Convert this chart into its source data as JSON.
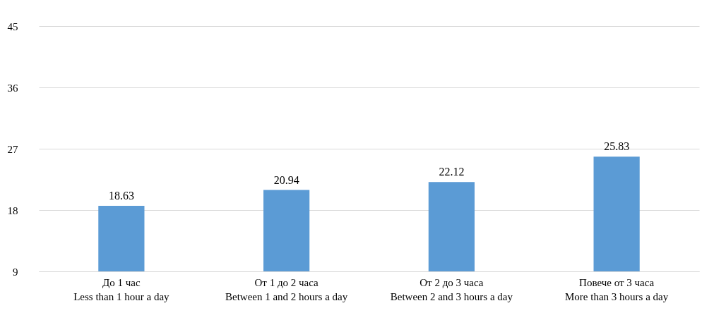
{
  "chart_data": {
    "type": "bar",
    "categories": [
      "До 1 час\nLess than 1 hour a day",
      "От 1 до 2 часа\nBetween 1 and 2 hours a day",
      "От 2 до 3 часа\nBetween 2 and 3 hours a day",
      "Повече от 3 часа\nMore than 3 hours a day"
    ],
    "values": [
      18.63,
      20.94,
      22.12,
      25.83
    ],
    "color": "#5b9bd5",
    "ylim": [
      9,
      45
    ],
    "yticks": [
      9,
      18,
      27,
      36,
      45
    ],
    "grid": "y",
    "data_labels": true
  }
}
